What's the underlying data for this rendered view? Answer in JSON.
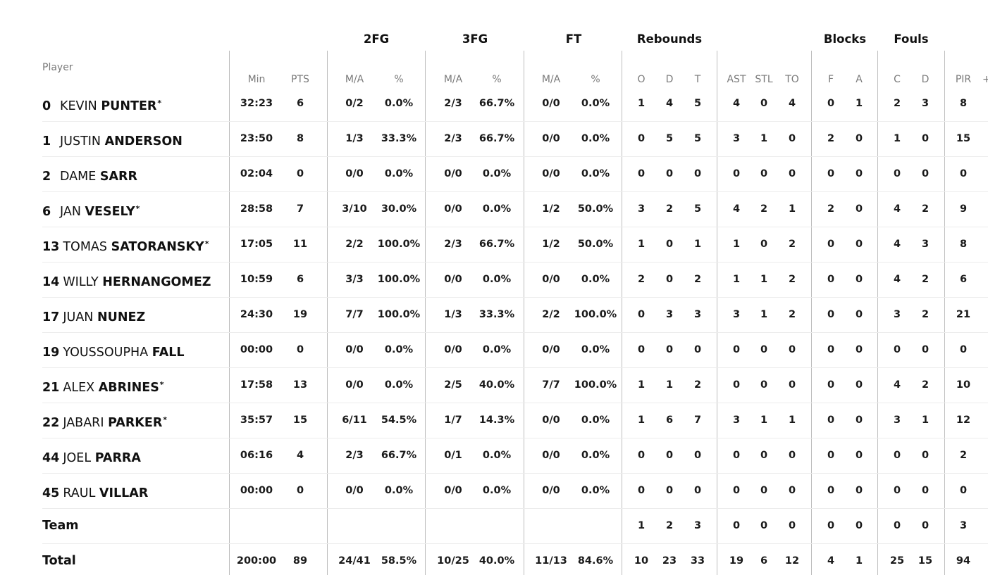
{
  "header": {
    "player_label": "Player",
    "groups": {
      "fg2": "2FG",
      "fg3": "3FG",
      "ft": "FT",
      "rebounds": "Rebounds",
      "blocks": "Blocks",
      "fouls": "Fouls"
    },
    "columns": {
      "min": "Min",
      "pts": "PTS",
      "fg2_ma": "M/A",
      "fg2_pct": "%",
      "fg3_ma": "M/A",
      "fg3_pct": "%",
      "ft_ma": "M/A",
      "ft_pct": "%",
      "reb_o": "O",
      "reb_d": "D",
      "reb_t": "T",
      "ast": "AST",
      "stl": "STL",
      "to": "TO",
      "blk_f": "F",
      "blk_a": "A",
      "foul_c": "C",
      "foul_d": "D",
      "pir": "PIR",
      "extra": "+"
    }
  },
  "players": [
    {
      "num": "0",
      "first": "KEVIN",
      "last": "PUNTER",
      "star": "*",
      "min": "32:23",
      "pts": "6",
      "fg2_ma": "0/2",
      "fg2_pct": "0.0%",
      "fg3_ma": "2/3",
      "fg3_pct": "66.7%",
      "ft_ma": "0/0",
      "ft_pct": "0.0%",
      "reb_o": "1",
      "reb_d": "4",
      "reb_t": "5",
      "ast": "4",
      "stl": "0",
      "to": "4",
      "blk_f": "0",
      "blk_a": "1",
      "foul_c": "2",
      "foul_d": "3",
      "pir": "8"
    },
    {
      "num": "1",
      "first": "JUSTIN",
      "last": "ANDERSON",
      "star": "",
      "min": "23:50",
      "pts": "8",
      "fg2_ma": "1/3",
      "fg2_pct": "33.3%",
      "fg3_ma": "2/3",
      "fg3_pct": "66.7%",
      "ft_ma": "0/0",
      "ft_pct": "0.0%",
      "reb_o": "0",
      "reb_d": "5",
      "reb_t": "5",
      "ast": "3",
      "stl": "1",
      "to": "0",
      "blk_f": "2",
      "blk_a": "0",
      "foul_c": "1",
      "foul_d": "0",
      "pir": "15"
    },
    {
      "num": "2",
      "first": "DAME",
      "last": "SARR",
      "star": "",
      "min": "02:04",
      "pts": "0",
      "fg2_ma": "0/0",
      "fg2_pct": "0.0%",
      "fg3_ma": "0/0",
      "fg3_pct": "0.0%",
      "ft_ma": "0/0",
      "ft_pct": "0.0%",
      "reb_o": "0",
      "reb_d": "0",
      "reb_t": "0",
      "ast": "0",
      "stl": "0",
      "to": "0",
      "blk_f": "0",
      "blk_a": "0",
      "foul_c": "0",
      "foul_d": "0",
      "pir": "0"
    },
    {
      "num": "6",
      "first": "JAN",
      "last": "VESELY",
      "star": "*",
      "min": "28:58",
      "pts": "7",
      "fg2_ma": "3/10",
      "fg2_pct": "30.0%",
      "fg3_ma": "0/0",
      "fg3_pct": "0.0%",
      "ft_ma": "1/2",
      "ft_pct": "50.0%",
      "reb_o": "3",
      "reb_d": "2",
      "reb_t": "5",
      "ast": "4",
      "stl": "2",
      "to": "1",
      "blk_f": "2",
      "blk_a": "0",
      "foul_c": "4",
      "foul_d": "2",
      "pir": "9"
    },
    {
      "num": "13",
      "first": "TOMAS",
      "last": "SATORANSKY",
      "star": "*",
      "min": "17:05",
      "pts": "11",
      "fg2_ma": "2/2",
      "fg2_pct": "100.0%",
      "fg3_ma": "2/3",
      "fg3_pct": "66.7%",
      "ft_ma": "1/2",
      "ft_pct": "50.0%",
      "reb_o": "1",
      "reb_d": "0",
      "reb_t": "1",
      "ast": "1",
      "stl": "0",
      "to": "2",
      "blk_f": "0",
      "blk_a": "0",
      "foul_c": "4",
      "foul_d": "3",
      "pir": "8"
    },
    {
      "num": "14",
      "first": "WILLY",
      "last": "HERNANGOMEZ",
      "star": "",
      "min": "10:59",
      "pts": "6",
      "fg2_ma": "3/3",
      "fg2_pct": "100.0%",
      "fg3_ma": "0/0",
      "fg3_pct": "0.0%",
      "ft_ma": "0/0",
      "ft_pct": "0.0%",
      "reb_o": "2",
      "reb_d": "0",
      "reb_t": "2",
      "ast": "1",
      "stl": "1",
      "to": "2",
      "blk_f": "0",
      "blk_a": "0",
      "foul_c": "4",
      "foul_d": "2",
      "pir": "6"
    },
    {
      "num": "17",
      "first": "JUAN",
      "last": "NUNEZ",
      "star": "",
      "min": "24:30",
      "pts": "19",
      "fg2_ma": "7/7",
      "fg2_pct": "100.0%",
      "fg3_ma": "1/3",
      "fg3_pct": "33.3%",
      "ft_ma": "2/2",
      "ft_pct": "100.0%",
      "reb_o": "0",
      "reb_d": "3",
      "reb_t": "3",
      "ast": "3",
      "stl": "1",
      "to": "2",
      "blk_f": "0",
      "blk_a": "0",
      "foul_c": "3",
      "foul_d": "2",
      "pir": "21"
    },
    {
      "num": "19",
      "first": "YOUSSOUPHA",
      "last": "FALL",
      "star": "",
      "min": "00:00",
      "pts": "0",
      "fg2_ma": "0/0",
      "fg2_pct": "0.0%",
      "fg3_ma": "0/0",
      "fg3_pct": "0.0%",
      "ft_ma": "0/0",
      "ft_pct": "0.0%",
      "reb_o": "0",
      "reb_d": "0",
      "reb_t": "0",
      "ast": "0",
      "stl": "0",
      "to": "0",
      "blk_f": "0",
      "blk_a": "0",
      "foul_c": "0",
      "foul_d": "0",
      "pir": "0"
    },
    {
      "num": "21",
      "first": "ALEX",
      "last": "ABRINES",
      "star": "*",
      "min": "17:58",
      "pts": "13",
      "fg2_ma": "0/0",
      "fg2_pct": "0.0%",
      "fg3_ma": "2/5",
      "fg3_pct": "40.0%",
      "ft_ma": "7/7",
      "ft_pct": "100.0%",
      "reb_o": "1",
      "reb_d": "1",
      "reb_t": "2",
      "ast": "0",
      "stl": "0",
      "to": "0",
      "blk_f": "0",
      "blk_a": "0",
      "foul_c": "4",
      "foul_d": "2",
      "pir": "10"
    },
    {
      "num": "22",
      "first": "JABARI",
      "last": "PARKER",
      "star": "*",
      "min": "35:57",
      "pts": "15",
      "fg2_ma": "6/11",
      "fg2_pct": "54.5%",
      "fg3_ma": "1/7",
      "fg3_pct": "14.3%",
      "ft_ma": "0/0",
      "ft_pct": "0.0%",
      "reb_o": "1",
      "reb_d": "6",
      "reb_t": "7",
      "ast": "3",
      "stl": "1",
      "to": "1",
      "blk_f": "0",
      "blk_a": "0",
      "foul_c": "3",
      "foul_d": "1",
      "pir": "12"
    },
    {
      "num": "44",
      "first": "JOEL",
      "last": "PARRA",
      "star": "",
      "min": "06:16",
      "pts": "4",
      "fg2_ma": "2/3",
      "fg2_pct": "66.7%",
      "fg3_ma": "0/1",
      "fg3_pct": "0.0%",
      "ft_ma": "0/0",
      "ft_pct": "0.0%",
      "reb_o": "0",
      "reb_d": "0",
      "reb_t": "0",
      "ast": "0",
      "stl": "0",
      "to": "0",
      "blk_f": "0",
      "blk_a": "0",
      "foul_c": "0",
      "foul_d": "0",
      "pir": "2"
    },
    {
      "num": "45",
      "first": "RAUL",
      "last": "VILLAR",
      "star": "",
      "min": "00:00",
      "pts": "0",
      "fg2_ma": "0/0",
      "fg2_pct": "0.0%",
      "fg3_ma": "0/0",
      "fg3_pct": "0.0%",
      "ft_ma": "0/0",
      "ft_pct": "0.0%",
      "reb_o": "0",
      "reb_d": "0",
      "reb_t": "0",
      "ast": "0",
      "stl": "0",
      "to": "0",
      "blk_f": "0",
      "blk_a": "0",
      "foul_c": "0",
      "foul_d": "0",
      "pir": "0"
    }
  ],
  "team": {
    "label": "Team",
    "min": "",
    "pts": "",
    "fg2_ma": "",
    "fg2_pct": "",
    "fg3_ma": "",
    "fg3_pct": "",
    "ft_ma": "",
    "ft_pct": "",
    "reb_o": "1",
    "reb_d": "2",
    "reb_t": "3",
    "ast": "0",
    "stl": "0",
    "to": "0",
    "blk_f": "0",
    "blk_a": "0",
    "foul_c": "0",
    "foul_d": "0",
    "pir": "3"
  },
  "total": {
    "label": "Total",
    "min": "200:00",
    "pts": "89",
    "fg2_ma": "24/41",
    "fg2_pct": "58.5%",
    "fg3_ma": "10/25",
    "fg3_pct": "40.0%",
    "ft_ma": "11/13",
    "ft_pct": "84.6%",
    "reb_o": "10",
    "reb_d": "23",
    "reb_t": "33",
    "ast": "19",
    "stl": "6",
    "to": "12",
    "blk_f": "4",
    "blk_a": "1",
    "foul_c": "25",
    "foul_d": "15",
    "pir": "94"
  }
}
